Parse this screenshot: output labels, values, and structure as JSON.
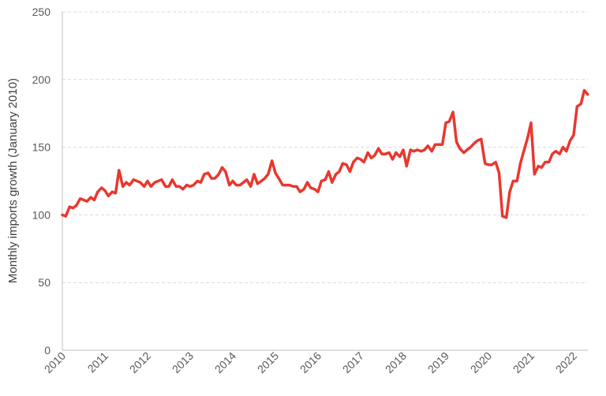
{
  "chart_data": {
    "type": "line",
    "title": "",
    "xlabel": "",
    "ylabel": "Monthly imports growth (January 2010)",
    "ylim": [
      0,
      250
    ],
    "yticks": [
      "0",
      "50",
      "100",
      "150",
      "200",
      "250"
    ],
    "xticks": [
      "2010",
      "2011",
      "2012",
      "2013",
      "2014",
      "2015",
      "2016",
      "2017",
      "2018",
      "2019",
      "2020",
      "2021",
      "2022"
    ],
    "xlim": [
      2010.0,
      2022.333
    ],
    "grid": "horizontal dashed",
    "legend": "none",
    "series": [
      {
        "color": "#e8382f",
        "points": [
          [
            2010.0,
            100
          ],
          [
            2010.08,
            99
          ],
          [
            2010.17,
            106
          ],
          [
            2010.25,
            105
          ],
          [
            2010.33,
            107
          ],
          [
            2010.42,
            112
          ],
          [
            2010.5,
            111
          ],
          [
            2010.58,
            110
          ],
          [
            2010.67,
            113
          ],
          [
            2010.75,
            111
          ],
          [
            2010.83,
            117
          ],
          [
            2010.92,
            120
          ],
          [
            2011.0,
            118
          ],
          [
            2011.08,
            114
          ],
          [
            2011.17,
            117
          ],
          [
            2011.25,
            116
          ],
          [
            2011.33,
            133
          ],
          [
            2011.42,
            121
          ],
          [
            2011.5,
            124
          ],
          [
            2011.58,
            122
          ],
          [
            2011.67,
            126
          ],
          [
            2011.75,
            125
          ],
          [
            2011.83,
            124
          ],
          [
            2011.92,
            121
          ],
          [
            2012.0,
            125
          ],
          [
            2012.08,
            121
          ],
          [
            2012.17,
            124
          ],
          [
            2012.25,
            125
          ],
          [
            2012.33,
            126
          ],
          [
            2012.42,
            121
          ],
          [
            2012.5,
            121
          ],
          [
            2012.58,
            126
          ],
          [
            2012.67,
            121
          ],
          [
            2012.75,
            121
          ],
          [
            2012.83,
            119
          ],
          [
            2012.92,
            122
          ],
          [
            2013.0,
            121
          ],
          [
            2013.08,
            122
          ],
          [
            2013.17,
            125
          ],
          [
            2013.25,
            124
          ],
          [
            2013.33,
            130
          ],
          [
            2013.42,
            131
          ],
          [
            2013.5,
            127
          ],
          [
            2013.58,
            127
          ],
          [
            2013.67,
            130
          ],
          [
            2013.75,
            135
          ],
          [
            2013.83,
            132
          ],
          [
            2013.92,
            122
          ],
          [
            2014.0,
            125
          ],
          [
            2014.08,
            122
          ],
          [
            2014.17,
            122
          ],
          [
            2014.25,
            124
          ],
          [
            2014.33,
            126
          ],
          [
            2014.42,
            121
          ],
          [
            2014.5,
            130
          ],
          [
            2014.58,
            123
          ],
          [
            2014.67,
            125
          ],
          [
            2014.75,
            127
          ],
          [
            2014.83,
            130
          ],
          [
            2014.92,
            140
          ],
          [
            2015.0,
            131
          ],
          [
            2015.08,
            127
          ],
          [
            2015.17,
            122
          ],
          [
            2015.25,
            122
          ],
          [
            2015.33,
            122
          ],
          [
            2015.42,
            121
          ],
          [
            2015.5,
            121
          ],
          [
            2015.58,
            117
          ],
          [
            2015.67,
            119
          ],
          [
            2015.75,
            124
          ],
          [
            2015.83,
            120
          ],
          [
            2015.92,
            119
          ],
          [
            2016.0,
            117
          ],
          [
            2016.08,
            125
          ],
          [
            2016.17,
            126
          ],
          [
            2016.25,
            132
          ],
          [
            2016.33,
            124
          ],
          [
            2016.42,
            130
          ],
          [
            2016.5,
            132
          ],
          [
            2016.58,
            138
          ],
          [
            2016.67,
            137
          ],
          [
            2016.75,
            132
          ],
          [
            2016.83,
            139
          ],
          [
            2016.92,
            142
          ],
          [
            2017.0,
            141
          ],
          [
            2017.08,
            139
          ],
          [
            2017.17,
            146
          ],
          [
            2017.25,
            142
          ],
          [
            2017.33,
            144
          ],
          [
            2017.42,
            149
          ],
          [
            2017.5,
            145
          ],
          [
            2017.58,
            145
          ],
          [
            2017.67,
            146
          ],
          [
            2017.75,
            141
          ],
          [
            2017.83,
            146
          ],
          [
            2017.92,
            143
          ],
          [
            2018.0,
            148
          ],
          [
            2018.08,
            136
          ],
          [
            2018.17,
            148
          ],
          [
            2018.25,
            147
          ],
          [
            2018.33,
            148
          ],
          [
            2018.42,
            147
          ],
          [
            2018.5,
            148
          ],
          [
            2018.58,
            151
          ],
          [
            2018.67,
            147
          ],
          [
            2018.75,
            152
          ],
          [
            2018.83,
            152
          ],
          [
            2018.92,
            152
          ],
          [
            2019.0,
            168
          ],
          [
            2019.08,
            169
          ],
          [
            2019.17,
            176
          ],
          [
            2019.25,
            154
          ],
          [
            2019.33,
            149
          ],
          [
            2019.42,
            146
          ],
          [
            2019.5,
            148
          ],
          [
            2019.58,
            150
          ],
          [
            2019.67,
            153
          ],
          [
            2019.75,
            155
          ],
          [
            2019.83,
            156
          ],
          [
            2019.92,
            138
          ],
          [
            2020.0,
            137
          ],
          [
            2020.08,
            137
          ],
          [
            2020.17,
            139
          ],
          [
            2020.25,
            131
          ],
          [
            2020.33,
            99
          ],
          [
            2020.42,
            98
          ],
          [
            2020.5,
            117
          ],
          [
            2020.58,
            125
          ],
          [
            2020.67,
            125
          ],
          [
            2020.75,
            138
          ],
          [
            2020.83,
            147
          ],
          [
            2020.92,
            157
          ],
          [
            2021.0,
            168
          ],
          [
            2021.08,
            130
          ],
          [
            2021.17,
            136
          ],
          [
            2021.25,
            135
          ],
          [
            2021.33,
            139
          ],
          [
            2021.42,
            139
          ],
          [
            2021.5,
            145
          ],
          [
            2021.58,
            147
          ],
          [
            2021.67,
            145
          ],
          [
            2021.75,
            150
          ],
          [
            2021.83,
            147
          ],
          [
            2021.92,
            155
          ],
          [
            2022.0,
            159
          ],
          [
            2022.08,
            180
          ],
          [
            2022.17,
            182
          ],
          [
            2022.25,
            192
          ],
          [
            2022.33,
            189
          ]
        ]
      }
    ]
  }
}
